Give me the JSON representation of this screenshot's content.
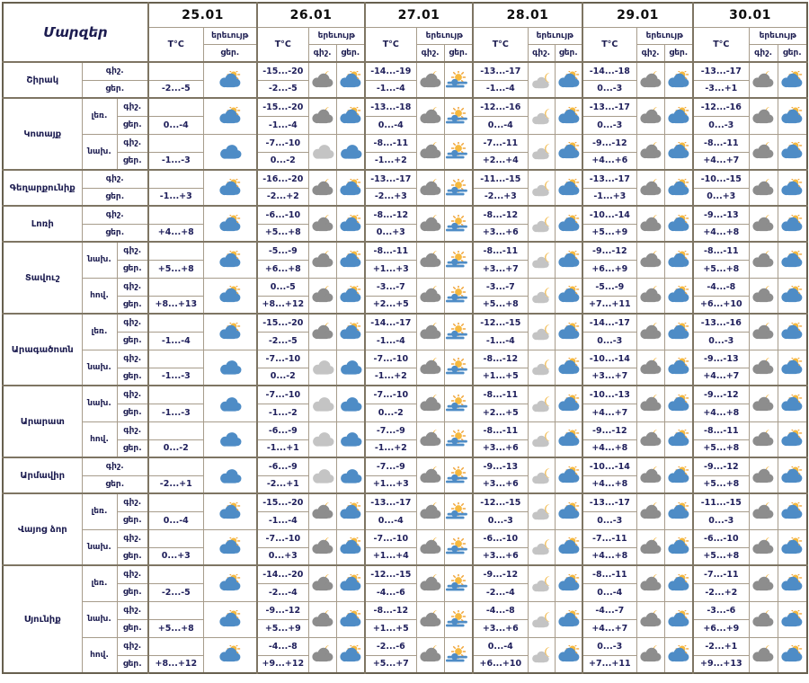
{
  "header": {
    "regions_label": "Մարզեր",
    "dates": [
      "25.01",
      "26.01",
      "27.01",
      "28.01",
      "29.01",
      "30.01"
    ],
    "temp_label": "T°C",
    "phenomena_label": "երեւույթ",
    "night_label": "գիշ.",
    "day_label": "ցեր."
  },
  "colors": {
    "cloud_blue": "#4e8cc6",
    "cloud_gray_night": "#8d8d8d",
    "cloud_gray_light": "#c4c4c4",
    "sun_yellow": "#f6b93f",
    "sun_ray_orange": "#f0a53c",
    "moon_yellow": "#f1b43e",
    "text_navy": "#20205c",
    "border_brown": "#7e7563"
  },
  "regions": [
    {
      "name": "Շիրակ",
      "zones": [
        {
          "zone": "",
          "t25": "-2...-5",
          "i25": "cloud-sun",
          "t": [
            [
              "-15...-20",
              "-2...-5"
            ],
            [
              "-14...-19",
              "-1...-4"
            ],
            [
              "-13...-17",
              "-1...-4"
            ],
            [
              "-14...-18",
              "0...-3"
            ],
            [
              "-13...-17",
              "-3...+1"
            ]
          ],
          "i": [
            [
              "moon-cloud",
              "cloud-sun"
            ],
            [
              "moon-cloud",
              "sun-haze"
            ],
            [
              "moon-cloud-light",
              "cloud-sun"
            ],
            [
              "moon-cloud",
              "cloud-sun"
            ],
            [
              "moon-cloud",
              "cloud-sun"
            ]
          ]
        }
      ]
    },
    {
      "name": "Կոտայք",
      "zones": [
        {
          "zone": "լեռ.",
          "t25": "0...-4",
          "i25": "cloud-sun",
          "t": [
            [
              "-15...-20",
              "-1...-4"
            ],
            [
              "-13...-18",
              "0...-4"
            ],
            [
              "-12...-16",
              "0...-4"
            ],
            [
              "-13...-17",
              "0...-3"
            ],
            [
              "-12...-16",
              "0...-3"
            ]
          ],
          "i": [
            [
              "moon-cloud",
              "cloud-sun"
            ],
            [
              "moon-cloud",
              "sun-haze"
            ],
            [
              "moon-cloud-light",
              "cloud-sun"
            ],
            [
              "moon-cloud",
              "cloud-sun"
            ],
            [
              "moon-cloud",
              "cloud-sun"
            ]
          ]
        },
        {
          "zone": "նախ.",
          "t25": "-1...-3",
          "i25": "cloud-blue",
          "t": [
            [
              "-7...-10",
              "0...-2"
            ],
            [
              "-8...-11",
              "-1...+2"
            ],
            [
              "-7...-11",
              "+2...+4"
            ],
            [
              "-9...-12",
              "+4...+6"
            ],
            [
              "-8...-11",
              "+4...+7"
            ]
          ],
          "i": [
            [
              "cloud-gray",
              "cloud-blue"
            ],
            [
              "moon-cloud",
              "sun-haze"
            ],
            [
              "moon-cloud-light",
              "cloud-sun"
            ],
            [
              "moon-cloud",
              "cloud-sun"
            ],
            [
              "moon-cloud",
              "cloud-sun"
            ]
          ]
        }
      ]
    },
    {
      "name": "Գեղարքունիք",
      "zones": [
        {
          "zone": "",
          "t25": "-1...+3",
          "i25": "cloud-sun",
          "t": [
            [
              "-16...-20",
              "-2...+2"
            ],
            [
              "-13...-17",
              "-2...+3"
            ],
            [
              "-11...-15",
              "-2...+3"
            ],
            [
              "-13...-17",
              "-1...+3"
            ],
            [
              "-10...-15",
              "0...+3"
            ]
          ],
          "i": [
            [
              "moon-cloud",
              "cloud-sun"
            ],
            [
              "moon-cloud",
              "sun-haze"
            ],
            [
              "moon-cloud-light",
              "cloud-sun"
            ],
            [
              "moon-cloud",
              "cloud-sun"
            ],
            [
              "moon-cloud",
              "cloud-sun"
            ]
          ]
        }
      ]
    },
    {
      "name": "Լոռի",
      "zones": [
        {
          "zone": "",
          "t25": "+4...+8",
          "i25": "cloud-sun",
          "t": [
            [
              "-6...-10",
              "+5...+8"
            ],
            [
              "-8...-12",
              "0...+3"
            ],
            [
              "-8...-12",
              "+3...+6"
            ],
            [
              "-10...-14",
              "+5...+9"
            ],
            [
              "-9...-13",
              "+4...+8"
            ]
          ],
          "i": [
            [
              "moon-cloud",
              "cloud-sun"
            ],
            [
              "moon-cloud",
              "sun-haze"
            ],
            [
              "moon-cloud-light",
              "cloud-sun"
            ],
            [
              "moon-cloud",
              "cloud-sun"
            ],
            [
              "moon-cloud",
              "cloud-sun"
            ]
          ]
        }
      ]
    },
    {
      "name": "Տավուշ",
      "zones": [
        {
          "zone": "նախ.",
          "t25": "+5...+8",
          "i25": "cloud-sun",
          "t": [
            [
              "-5...-9",
              "+6...+8"
            ],
            [
              "-8...-11",
              "+1...+3"
            ],
            [
              "-8...-11",
              "+3...+7"
            ],
            [
              "-9...-12",
              "+6...+9"
            ],
            [
              "-8...-11",
              "+5...+8"
            ]
          ],
          "i": [
            [
              "moon-cloud",
              "cloud-sun"
            ],
            [
              "moon-cloud",
              "sun-haze"
            ],
            [
              "moon-cloud-light",
              "cloud-sun"
            ],
            [
              "moon-cloud",
              "cloud-sun"
            ],
            [
              "moon-cloud",
              "cloud-sun"
            ]
          ]
        },
        {
          "zone": "հով.",
          "t25": "+8...+13",
          "i25": "cloud-sun",
          "t": [
            [
              "0...-5",
              "+8...+12"
            ],
            [
              "-3...-7",
              "+2...+5"
            ],
            [
              "-3...-7",
              "+5...+8"
            ],
            [
              "-5...-9",
              "+7...+11"
            ],
            [
              "-4...-8",
              "+6...+10"
            ]
          ],
          "i": [
            [
              "moon-cloud",
              "cloud-sun"
            ],
            [
              "moon-cloud",
              "sun-haze"
            ],
            [
              "moon-cloud-light",
              "cloud-sun"
            ],
            [
              "moon-cloud",
              "cloud-sun"
            ],
            [
              "moon-cloud",
              "cloud-sun"
            ]
          ]
        }
      ]
    },
    {
      "name": "Արագածոտն",
      "zones": [
        {
          "zone": "լեռ.",
          "t25": "-1...-4",
          "i25": "cloud-sun",
          "t": [
            [
              "-15...-20",
              "-2...-5"
            ],
            [
              "-14...-17",
              "-1...-4"
            ],
            [
              "-12...-15",
              "-1...-4"
            ],
            [
              "-14...-17",
              "0...-3"
            ],
            [
              "-13...-16",
              "0...-3"
            ]
          ],
          "i": [
            [
              "moon-cloud",
              "cloud-sun"
            ],
            [
              "moon-cloud",
              "sun-haze"
            ],
            [
              "moon-cloud-light",
              "cloud-sun"
            ],
            [
              "moon-cloud",
              "cloud-sun"
            ],
            [
              "moon-cloud",
              "cloud-sun"
            ]
          ]
        },
        {
          "zone": "նախ.",
          "t25": "-1...-3",
          "i25": "cloud-blue",
          "t": [
            [
              "-7...-10",
              "0...-2"
            ],
            [
              "-7...-10",
              "-1...+2"
            ],
            [
              "-8...-12",
              "+1...+5"
            ],
            [
              "-10...-14",
              "+3...+7"
            ],
            [
              "-9...-13",
              "+4...+7"
            ]
          ],
          "i": [
            [
              "cloud-gray",
              "cloud-blue"
            ],
            [
              "moon-cloud",
              "sun-haze"
            ],
            [
              "moon-cloud-light",
              "cloud-sun"
            ],
            [
              "moon-cloud",
              "cloud-sun"
            ],
            [
              "moon-cloud",
              "cloud-sun"
            ]
          ]
        }
      ]
    },
    {
      "name": "Արարատ",
      "zones": [
        {
          "zone": "նախ.",
          "t25": "-1...-3",
          "i25": "cloud-blue",
          "t": [
            [
              "-7...-10",
              "-1...-2"
            ],
            [
              "-7...-10",
              "0...-2"
            ],
            [
              "-8...-11",
              "+2...+5"
            ],
            [
              "-10...-13",
              "+4...+7"
            ],
            [
              "-9...-12",
              "+4...+8"
            ]
          ],
          "i": [
            [
              "cloud-gray",
              "cloud-blue"
            ],
            [
              "moon-cloud",
              "sun-haze"
            ],
            [
              "moon-cloud-light",
              "cloud-sun"
            ],
            [
              "moon-cloud",
              "cloud-sun"
            ],
            [
              "moon-cloud",
              "cloud-sun"
            ]
          ]
        },
        {
          "zone": "հով.",
          "t25": "0...-2",
          "i25": "cloud-blue",
          "t": [
            [
              "-6...-9",
              "-1...+1"
            ],
            [
              "-7...-9",
              "-1...+2"
            ],
            [
              "-8...-11",
              "+3...+6"
            ],
            [
              "-9...-12",
              "+4...+8"
            ],
            [
              "-8...-11",
              "+5...+8"
            ]
          ],
          "i": [
            [
              "cloud-gray",
              "cloud-blue"
            ],
            [
              "moon-cloud",
              "sun-haze"
            ],
            [
              "moon-cloud-light",
              "cloud-sun"
            ],
            [
              "moon-cloud",
              "cloud-sun"
            ],
            [
              "moon-cloud",
              "cloud-sun"
            ]
          ]
        }
      ]
    },
    {
      "name": "Արմավիր",
      "zones": [
        {
          "zone": "",
          "t25": "-2...+1",
          "i25": "cloud-blue",
          "t": [
            [
              "-6...-9",
              "-2...+1"
            ],
            [
              "-7...-9",
              "+1...+3"
            ],
            [
              "-9...-13",
              "+3...+6"
            ],
            [
              "-10...-14",
              "+4...+8"
            ],
            [
              "-9...-12",
              "+5...+8"
            ]
          ],
          "i": [
            [
              "cloud-gray",
              "cloud-blue"
            ],
            [
              "moon-cloud",
              "sun-haze"
            ],
            [
              "moon-cloud-light",
              "cloud-sun"
            ],
            [
              "moon-cloud",
              "cloud-sun"
            ],
            [
              "moon-cloud",
              "cloud-sun"
            ]
          ]
        }
      ]
    },
    {
      "name": "Վայոց ձոր",
      "zones": [
        {
          "zone": "լեռ.",
          "t25": "0...-4",
          "i25": "cloud-sun",
          "t": [
            [
              "-15...-20",
              "-1...-4"
            ],
            [
              "-13...-17",
              "0...-4"
            ],
            [
              "-12...-15",
              "0...-3"
            ],
            [
              "-13...-17",
              "0...-3"
            ],
            [
              "-11...-15",
              "0...-3"
            ]
          ],
          "i": [
            [
              "moon-cloud",
              "cloud-sun"
            ],
            [
              "moon-cloud",
              "sun-haze"
            ],
            [
              "moon-cloud-light",
              "cloud-sun"
            ],
            [
              "moon-cloud",
              "cloud-sun"
            ],
            [
              "moon-cloud",
              "cloud-sun"
            ]
          ]
        },
        {
          "zone": "նախ.",
          "t25": "0...+3",
          "i25": "cloud-sun",
          "t": [
            [
              "-7...-10",
              "0...+3"
            ],
            [
              "-7...-10",
              "+1...+4"
            ],
            [
              "-6...-10",
              "+3...+6"
            ],
            [
              "-7...-11",
              "+4...+8"
            ],
            [
              "-6...-10",
              "+5...+8"
            ]
          ],
          "i": [
            [
              "moon-cloud",
              "cloud-sun"
            ],
            [
              "moon-cloud",
              "sun-haze"
            ],
            [
              "moon-cloud-light",
              "cloud-sun"
            ],
            [
              "moon-cloud",
              "cloud-sun"
            ],
            [
              "moon-cloud",
              "cloud-sun"
            ]
          ]
        }
      ]
    },
    {
      "name": "Սյունիք",
      "zones": [
        {
          "zone": "լեռ.",
          "t25": "-2...-5",
          "i25": "cloud-sun",
          "t": [
            [
              "-14...-20",
              "-2...-4"
            ],
            [
              "-12...-15",
              "-4...-6"
            ],
            [
              "-9...-12",
              "-2...-4"
            ],
            [
              "-8...-11",
              "0...-4"
            ],
            [
              "-7...-11",
              "-2...+2"
            ]
          ],
          "i": [
            [
              "moon-cloud",
              "cloud-sun"
            ],
            [
              "moon-cloud",
              "sun-haze"
            ],
            [
              "moon-cloud-light",
              "cloud-sun"
            ],
            [
              "moon-cloud",
              "cloud-sun"
            ],
            [
              "moon-cloud",
              "cloud-sun"
            ]
          ]
        },
        {
          "zone": "նախ.",
          "t25": "+5...+8",
          "i25": "cloud-sun",
          "t": [
            [
              "-9...-12",
              "+5...+9"
            ],
            [
              "-8...-12",
              "+1...+5"
            ],
            [
              "-4...-8",
              "+3...+6"
            ],
            [
              "-4...-7",
              "+4...+7"
            ],
            [
              "-3...-6",
              "+6...+9"
            ]
          ],
          "i": [
            [
              "moon-cloud",
              "cloud-sun"
            ],
            [
              "moon-cloud",
              "sun-haze"
            ],
            [
              "moon-cloud-light",
              "cloud-sun"
            ],
            [
              "moon-cloud",
              "cloud-sun"
            ],
            [
              "moon-cloud",
              "cloud-sun"
            ]
          ]
        },
        {
          "zone": "հով.",
          "t25": "+8...+12",
          "i25": "cloud-sun",
          "t": [
            [
              "-4...-8",
              "+9...+12"
            ],
            [
              "-2...-6",
              "+5...+7"
            ],
            [
              "0...-4",
              "+6...+10"
            ],
            [
              "0...-3",
              "+7...+11"
            ],
            [
              "-2...+1",
              "+9...+13"
            ]
          ],
          "i": [
            [
              "moon-cloud",
              "cloud-sun"
            ],
            [
              "moon-cloud",
              "sun-haze"
            ],
            [
              "moon-cloud-light",
              "cloud-sun"
            ],
            [
              "moon-cloud",
              "cloud-sun"
            ],
            [
              "moon-cloud",
              "cloud-sun"
            ]
          ]
        }
      ]
    }
  ]
}
